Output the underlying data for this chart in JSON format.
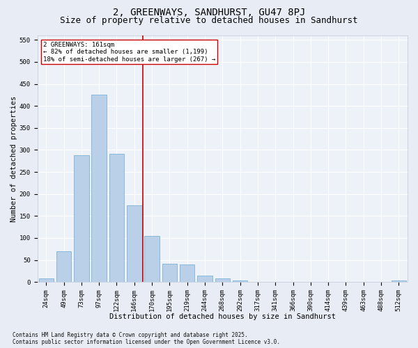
{
  "title": "2, GREENWAYS, SANDHURST, GU47 8PJ",
  "subtitle": "Size of property relative to detached houses in Sandhurst",
  "xlabel": "Distribution of detached houses by size in Sandhurst",
  "ylabel": "Number of detached properties",
  "bar_labels": [
    "24sqm",
    "49sqm",
    "73sqm",
    "97sqm",
    "122sqm",
    "146sqm",
    "170sqm",
    "195sqm",
    "219sqm",
    "244sqm",
    "268sqm",
    "292sqm",
    "317sqm",
    "341sqm",
    "366sqm",
    "390sqm",
    "414sqm",
    "439sqm",
    "463sqm",
    "488sqm",
    "512sqm"
  ],
  "bar_values": [
    8,
    70,
    288,
    425,
    292,
    175,
    105,
    42,
    40,
    14,
    8,
    4,
    1,
    1,
    0,
    0,
    0,
    0,
    1,
    0,
    3
  ],
  "bar_color": "#bad0e8",
  "bar_edge_color": "#6aaad4",
  "vline_x": 5.5,
  "vline_color": "#cc0000",
  "annotation_line1": "2 GREENWAYS: 161sqm",
  "annotation_line2": "← 82% of detached houses are smaller (1,199)",
  "annotation_line3": "18% of semi-detached houses are larger (267) →",
  "annotation_box_facecolor": "white",
  "annotation_box_edgecolor": "#cc0000",
  "ylim_max": 560,
  "yticks": [
    0,
    50,
    100,
    150,
    200,
    250,
    300,
    350,
    400,
    450,
    500,
    550
  ],
  "footnote": "Contains HM Land Registry data © Crown copyright and database right 2025.\nContains public sector information licensed under the Open Government Licence v3.0.",
  "bg_color": "#e8edf5",
  "plot_bg_color": "#edf1f8",
  "grid_color": "#ffffff",
  "title_fontsize": 10,
  "subtitle_fontsize": 9,
  "axlabel_fontsize": 7.5,
  "tick_fontsize": 6.5,
  "annot_fontsize": 6.5,
  "footnote_fontsize": 5.5
}
